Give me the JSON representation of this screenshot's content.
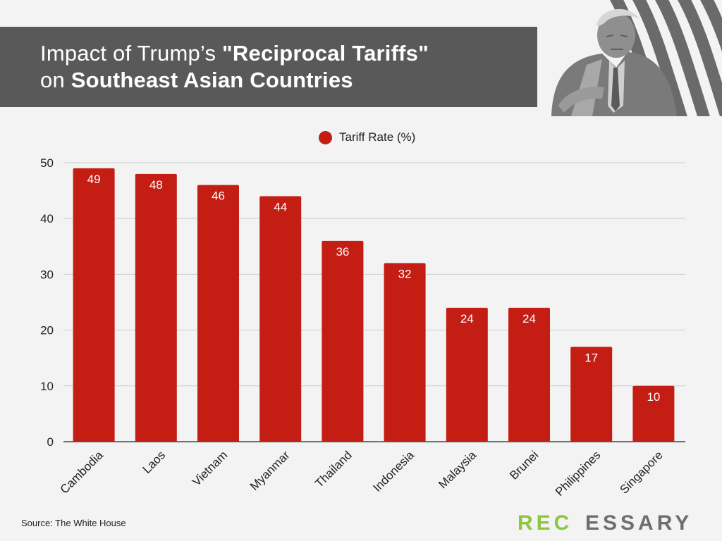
{
  "header": {
    "title_line1_prefix": "Impact of Trump’s ",
    "title_line1_bold": "\"Reciprocal Tariffs\"",
    "title_line2_prefix": "on ",
    "title_line2_bold": "Southeast Asian Countries"
  },
  "footer": {
    "source": "Source: The White House",
    "brand_accent": "REC",
    "brand_rest": "ESSARY"
  },
  "colors": {
    "bar": "#c41e14",
    "banner": "#595959",
    "background": "#f3f3f3",
    "grid": "#cccccc",
    "brand_accent": "#8dc63f",
    "brand_rest": "#6d6e71"
  },
  "icons": {
    "illustration": "trump-portrait-stripes-illustration",
    "legend_marker": "red-circle-icon"
  },
  "chart_data": {
    "type": "bar",
    "title": "Impact of Trump’s \"Reciprocal Tariffs\" on Southeast Asian Countries",
    "categories": [
      "Cambodia",
      "Laos",
      "Vietnam",
      "Myanmar",
      "Thailand",
      "Indonesia",
      "Malaysia",
      "Brunei",
      "Philippines",
      "Singapore"
    ],
    "series": [
      {
        "name": "Tariff Rate (%)",
        "values": [
          49,
          48,
          46,
          44,
          36,
          32,
          24,
          24,
          17,
          10
        ]
      }
    ],
    "y_ticks": [
      0,
      10,
      20,
      30,
      40,
      50
    ],
    "ylim": [
      0,
      50
    ],
    "xlabel": "",
    "ylabel": "",
    "grid": true,
    "legend": "top-center",
    "data_labels": true
  }
}
